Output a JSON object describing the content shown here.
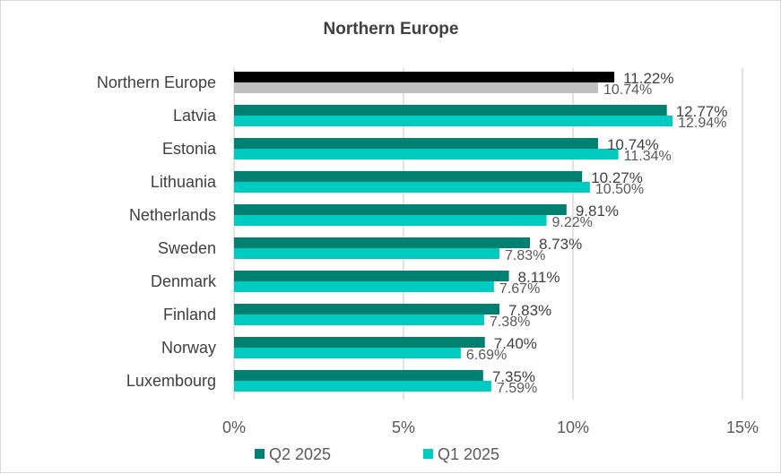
{
  "chart_data": {
    "type": "bar",
    "orientation": "horizontal",
    "title": "Northern Europe",
    "categories": [
      "Northern Europe",
      "Latvia",
      "Estonia",
      "Lithuania",
      "Netherlands",
      "Sweden",
      "Denmark",
      "Finland",
      "Norway",
      "Luxembourg"
    ],
    "series": [
      {
        "name": "Q2 2025",
        "color": "#008070",
        "highlight_color": "#000000",
        "values": [
          11.22,
          12.77,
          10.74,
          10.27,
          9.81,
          8.73,
          8.11,
          7.83,
          7.4,
          7.35
        ],
        "labels": [
          "11.22%",
          "12.77%",
          "10.74%",
          "10.27%",
          "9.81%",
          "8.73%",
          "8.11%",
          "7.83%",
          "7.40%",
          "7.35%"
        ]
      },
      {
        "name": "Q1 2025",
        "color": "#00CBC0",
        "highlight_color": "#BFBFBF",
        "values": [
          10.74,
          12.94,
          11.34,
          10.5,
          9.22,
          7.83,
          7.67,
          7.38,
          6.69,
          7.59
        ],
        "labels": [
          "10.74%",
          "12.94%",
          "11.34%",
          "10.50%",
          "9.22%",
          "7.83%",
          "7.67%",
          "7.38%",
          "6.69%",
          "7.59%"
        ]
      }
    ],
    "xlim": [
      0,
      15
    ],
    "xticks": [
      "0%",
      "5%",
      "10%",
      "15%"
    ],
    "xtick_values": [
      0,
      5,
      10,
      15
    ],
    "grid": true,
    "legend_position": "bottom"
  }
}
